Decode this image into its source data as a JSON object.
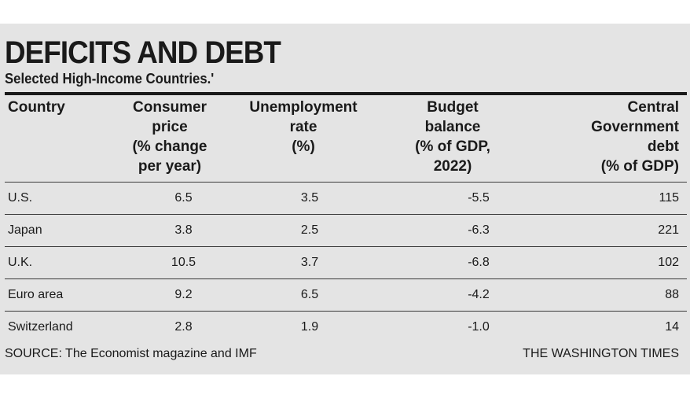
{
  "title": "DEFICITS AND DEBT",
  "subtitle": "Selected High-Income Countries.'",
  "chart_data": {
    "type": "table",
    "columns": [
      "Country",
      "Consumer price (% change per year)",
      "Unemployment rate (%)",
      "Budget balance (% of GDP, 2022)",
      "Central Government debt (% of GDP)"
    ],
    "header_lines": [
      [
        "Country"
      ],
      [
        "Consumer",
        "price",
        "(% change",
        "per year)"
      ],
      [
        "Unemployment",
        "rate",
        "(%)"
      ],
      [
        "Budget",
        "balance",
        "(% of GDP,",
        "2022)"
      ],
      [
        "Central",
        "Government",
        "debt",
        "(% of GDP)"
      ]
    ],
    "rows": [
      [
        "U.S.",
        "6.5",
        "3.5",
        "-5.5",
        "115"
      ],
      [
        "Japan",
        "3.8",
        "2.5",
        "-6.3",
        "221"
      ],
      [
        "U.K.",
        "10.5",
        "3.7",
        "-6.8",
        "102"
      ],
      [
        "Euro area",
        "9.2",
        "6.5",
        "-4.2",
        "88"
      ],
      [
        "Switzerland",
        "2.8",
        "1.9",
        "-1.0",
        "14"
      ]
    ]
  },
  "footer": {
    "source": "SOURCE: The Economist magazine and IMF",
    "credit": "THE WASHINGTON TIMES"
  },
  "colors": {
    "panel_background": "#e4e4e4",
    "text": "#1a1a1a",
    "rules": "#1a1a1a"
  }
}
